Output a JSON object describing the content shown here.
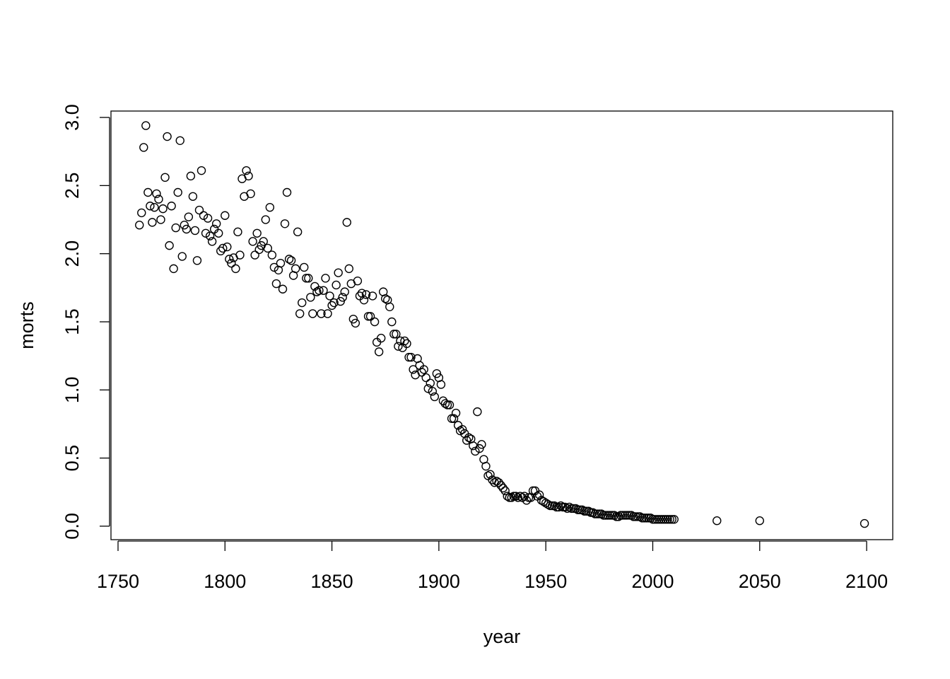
{
  "chart_data": {
    "type": "scatter",
    "x_label": "year",
    "y_label": "morts",
    "x": [
      1760,
      1761,
      1762,
      1763,
      1764,
      1765,
      1766,
      1767,
      1768,
      1769,
      1770,
      1771,
      1772,
      1773,
      1774,
      1775,
      1776,
      1777,
      1778,
      1779,
      1780,
      1781,
      1782,
      1783,
      1784,
      1785,
      1786,
      1787,
      1788,
      1789,
      1790,
      1791,
      1792,
      1793,
      1794,
      1795,
      1796,
      1797,
      1798,
      1799,
      1800,
      1801,
      1802,
      1803,
      1804,
      1805,
      1806,
      1807,
      1808,
      1809,
      1810,
      1811,
      1812,
      1813,
      1814,
      1815,
      1816,
      1817,
      1818,
      1819,
      1820,
      1821,
      1822,
      1823,
      1824,
      1825,
      1826,
      1827,
      1828,
      1829,
      1830,
      1831,
      1832,
      1833,
      1834,
      1835,
      1836,
      1837,
      1838,
      1839,
      1840,
      1841,
      1842,
      1843,
      1844,
      1845,
      1846,
      1847,
      1848,
      1849,
      1850,
      1851,
      1852,
      1853,
      1854,
      1855,
      1856,
      1857,
      1858,
      1859,
      1860,
      1861,
      1862,
      1863,
      1864,
      1865,
      1866,
      1867,
      1868,
      1869,
      1870,
      1871,
      1872,
      1873,
      1874,
      1875,
      1876,
      1877,
      1878,
      1879,
      1880,
      1881,
      1882,
      1883,
      1884,
      1885,
      1886,
      1887,
      1888,
      1889,
      1890,
      1891,
      1892,
      1893,
      1894,
      1895,
      1896,
      1897,
      1898,
      1899,
      1900,
      1901,
      1902,
      1903,
      1904,
      1905,
      1906,
      1907,
      1908,
      1909,
      1910,
      1911,
      1912,
      1913,
      1914,
      1915,
      1916,
      1917,
      1918,
      1919,
      1920,
      1921,
      1922,
      1923,
      1924,
      1925,
      1926,
      1927,
      1928,
      1929,
      1930,
      1931,
      1932,
      1933,
      1934,
      1935,
      1936,
      1937,
      1938,
      1939,
      1940,
      1941,
      1942,
      1943,
      1944,
      1945,
      1946,
      1947,
      1948,
      1949,
      1950,
      1951,
      1952,
      1953,
      1954,
      1955,
      1956,
      1957,
      1958,
      1959,
      1960,
      1961,
      1962,
      1963,
      1964,
      1965,
      1966,
      1967,
      1968,
      1969,
      1970,
      1971,
      1972,
      1973,
      1974,
      1975,
      1976,
      1977,
      1978,
      1979,
      1980,
      1981,
      1982,
      1983,
      1984,
      1985,
      1986,
      1987,
      1988,
      1989,
      1990,
      1991,
      1992,
      1993,
      1994,
      1995,
      1996,
      1997,
      1998,
      1999,
      2000,
      2001,
      2002,
      2003,
      2004,
      2005,
      2006,
      2007,
      2008,
      2009,
      2010,
      2030,
      2050,
      2099
    ],
    "values": [
      2.21,
      2.3,
      2.78,
      2.94,
      2.45,
      2.35,
      2.23,
      2.34,
      2.44,
      2.4,
      2.25,
      2.33,
      2.56,
      2.86,
      2.06,
      2.35,
      1.89,
      2.19,
      2.45,
      2.83,
      1.98,
      2.21,
      2.18,
      2.27,
      2.57,
      2.42,
      2.17,
      1.95,
      2.32,
      2.61,
      2.28,
      2.15,
      2.26,
      2.13,
      2.09,
      2.18,
      2.22,
      2.15,
      2.02,
      2.04,
      2.28,
      2.05,
      1.96,
      1.93,
      1.97,
      1.89,
      2.16,
      1.99,
      2.55,
      2.42,
      2.61,
      2.57,
      2.44,
      2.09,
      1.99,
      2.15,
      2.03,
      2.06,
      2.09,
      2.25,
      2.04,
      2.34,
      1.99,
      1.9,
      1.78,
      1.88,
      1.93,
      1.74,
      2.22,
      2.45,
      1.96,
      1.95,
      1.84,
      1.89,
      2.16,
      1.56,
      1.64,
      1.9,
      1.82,
      1.82,
      1.68,
      1.56,
      1.76,
      1.72,
      1.73,
      1.56,
      1.73,
      1.82,
      1.56,
      1.69,
      1.62,
      1.64,
      1.77,
      1.86,
      1.65,
      1.68,
      1.72,
      2.23,
      1.89,
      1.78,
      1.52,
      1.49,
      1.8,
      1.69,
      1.71,
      1.66,
      1.7,
      1.54,
      1.54,
      1.69,
      1.5,
      1.35,
      1.28,
      1.38,
      1.72,
      1.67,
      1.66,
      1.61,
      1.5,
      1.41,
      1.41,
      1.32,
      1.36,
      1.31,
      1.36,
      1.34,
      1.24,
      1.24,
      1.15,
      1.11,
      1.23,
      1.18,
      1.13,
      1.15,
      1.09,
      1.01,
      1.05,
      0.99,
      0.95,
      1.12,
      1.09,
      1.04,
      0.92,
      0.9,
      0.89,
      0.89,
      0.79,
      0.79,
      0.83,
      0.74,
      0.7,
      0.71,
      0.68,
      0.63,
      0.65,
      0.64,
      0.59,
      0.55,
      0.84,
      0.57,
      0.6,
      0.49,
      0.44,
      0.37,
      0.38,
      0.34,
      0.32,
      0.33,
      0.32,
      0.3,
      0.28,
      0.26,
      0.22,
      0.21,
      0.21,
      0.22,
      0.22,
      0.21,
      0.22,
      0.21,
      0.22,
      0.19,
      0.21,
      0.21,
      0.26,
      0.26,
      0.22,
      0.23,
      0.19,
      0.18,
      0.17,
      0.16,
      0.15,
      0.15,
      0.15,
      0.14,
      0.14,
      0.15,
      0.14,
      0.14,
      0.13,
      0.14,
      0.13,
      0.13,
      0.13,
      0.12,
      0.12,
      0.12,
      0.11,
      0.11,
      0.11,
      0.1,
      0.1,
      0.09,
      0.09,
      0.09,
      0.09,
      0.08,
      0.08,
      0.08,
      0.08,
      0.08,
      0.08,
      0.07,
      0.07,
      0.08,
      0.08,
      0.08,
      0.08,
      0.08,
      0.08,
      0.07,
      0.07,
      0.07,
      0.07,
      0.06,
      0.06,
      0.06,
      0.06,
      0.06,
      0.05,
      0.05,
      0.05,
      0.05,
      0.05,
      0.05,
      0.05,
      0.05,
      0.05,
      0.05,
      0.05,
      0.04,
      0.04,
      0.02
    ],
    "color": "#000000",
    "xlim": [
      1746.7,
      2112.2
    ],
    "xticks": [
      1750,
      1800,
      1850,
      1900,
      1950,
      2000,
      2050,
      2100
    ],
    "ylim": [
      -0.099,
      3.047
    ],
    "yticks": [
      {
        "value": 0,
        "label": "0.0"
      },
      0.5,
      {
        "value": 1,
        "label": "1.0"
      },
      1.5,
      {
        "value": 2,
        "label": "2.0"
      },
      2.5,
      {
        "value": 3,
        "label": "3.0"
      }
    ],
    "grid": false
  }
}
